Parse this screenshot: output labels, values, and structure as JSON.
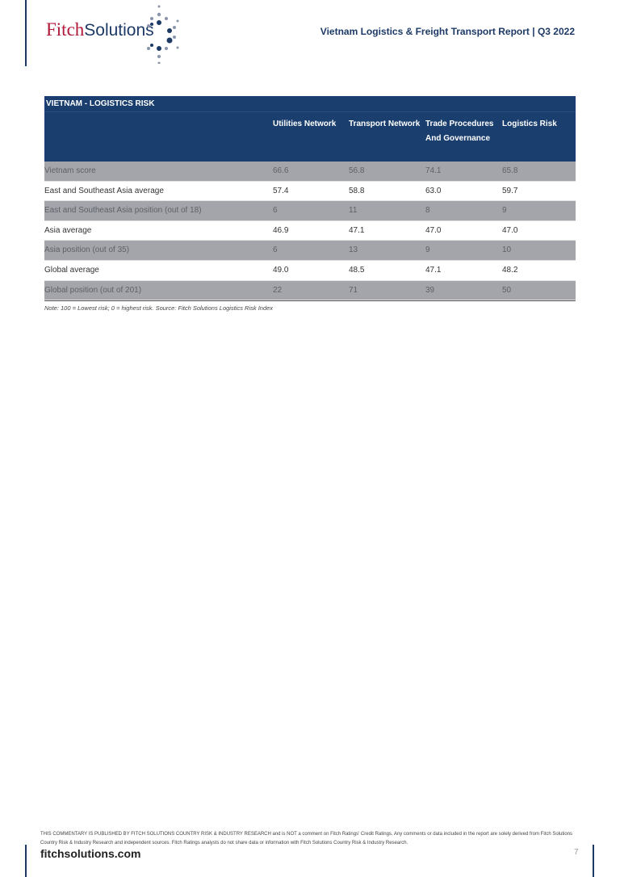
{
  "header": {
    "logo_text_1": "Fitch",
    "logo_text_2": "Solutions",
    "report_title": "Vietnam Logistics & Freight Transport Report | Q3 2022"
  },
  "table": {
    "title": "VIETNAM - LOGISTICS RISK",
    "columns": [
      "Utilities Network",
      "Transport Network",
      "Trade Procedures And Governance",
      "Logistics Risk"
    ],
    "rows": [
      {
        "label": "Vietnam score",
        "values": [
          "66.6",
          "56.8",
          "74.1",
          "65.8"
        ]
      },
      {
        "label": "East and Southeast Asia average",
        "values": [
          "57.4",
          "58.8",
          "63.0",
          "59.7"
        ]
      },
      {
        "label": "East and Southeast Asia position (out of 18)",
        "values": [
          "6",
          "11",
          "8",
          "9"
        ]
      },
      {
        "label": "Asia average",
        "values": [
          "46.9",
          "47.1",
          "47.0",
          "47.0"
        ]
      },
      {
        "label": "Asia position (out of 35)",
        "values": [
          "6",
          "13",
          "9",
          "10"
        ]
      },
      {
        "label": "Global average",
        "values": [
          "49.0",
          "48.5",
          "47.1",
          "48.2"
        ]
      },
      {
        "label": "Global position (out of 201)",
        "values": [
          "22",
          "71",
          "39",
          "50"
        ]
      }
    ],
    "note": "Note: 100 = Lowest risk; 0 = highest risk. Source: Fitch Solutions Logistics Risk Index"
  },
  "footer": {
    "disclaimer": "THIS COMMENTARY IS PUBLISHED BY FITCH SOLUTIONS COUNTRY RISK & INDUSTRY RESEARCH and is NOT a comment on Fitch Ratings' Credit Ratings. Any comments or data included in the report are solely derived from Fitch Solutions Country Risk & Industry Research and independent sources. Fitch Ratings analysts do not share data or information with Fitch Solutions Country Risk & Industry Research.",
    "site": "fitchsolutions.com",
    "page_number": "7"
  },
  "colors": {
    "brand_navy": "#1a3f6f",
    "brand_red": "#b0183a",
    "row_gray": "#a3a5ab"
  }
}
